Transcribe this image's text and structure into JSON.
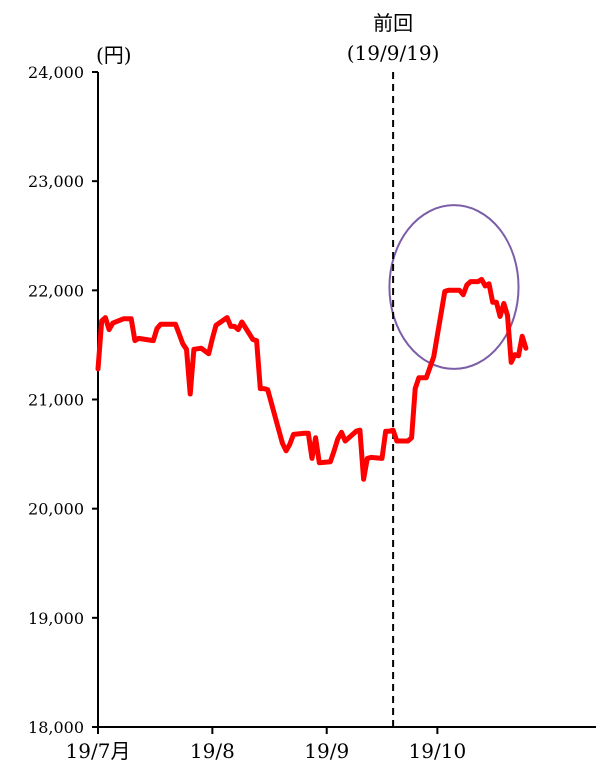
{
  "chart_data": {
    "type": "line",
    "unit_label": "(円)",
    "ylim": [
      18000,
      24000
    ],
    "y_ticks": [
      {
        "value": 18000,
        "label": "18,000"
      },
      {
        "value": 19000,
        "label": "19,000"
      },
      {
        "value": 20000,
        "label": "20,000"
      },
      {
        "value": 21000,
        "label": "21,000"
      },
      {
        "value": 22000,
        "label": "22,000"
      },
      {
        "value": 23000,
        "label": "23,000"
      },
      {
        "value": 24000,
        "label": "24,000"
      }
    ],
    "x_range": [
      "2019-07-01",
      "2019-10-25"
    ],
    "x_ticks": [
      {
        "date": "2019-07-01",
        "label": "19/7月"
      },
      {
        "date": "2019-08-01",
        "label": "19/8"
      },
      {
        "date": "2019-09-01",
        "label": "19/9"
      },
      {
        "date": "2019-10-01",
        "label": "19/10"
      }
    ],
    "reference_line": {
      "date": "2019-09-19",
      "label_line1": "前回",
      "label_line2": "(19/9/19)",
      "style": "dashed"
    },
    "highlight_circle": {
      "color": "#7b5ea7",
      "date_from": "2019-09-18",
      "date_to": "2019-10-23",
      "y_from": 21280,
      "y_to": 22780
    },
    "grid": false,
    "series_color": "#ff0000",
    "series": [
      {
        "values": [
          [
            "2019-07-01",
            21280
          ],
          [
            "2019-07-02",
            21720
          ],
          [
            "2019-07-03",
            21750
          ],
          [
            "2019-07-04",
            21640
          ],
          [
            "2019-07-05",
            21700
          ],
          [
            "2019-07-08",
            21740
          ],
          [
            "2019-07-09",
            21740
          ],
          [
            "2019-07-10",
            21740
          ],
          [
            "2019-07-11",
            21540
          ],
          [
            "2019-07-12",
            21560
          ],
          [
            "2019-07-16",
            21540
          ],
          [
            "2019-07-17",
            21650
          ],
          [
            "2019-07-18",
            21690
          ],
          [
            "2019-07-19",
            21690
          ],
          [
            "2019-07-22",
            21690
          ],
          [
            "2019-07-23",
            21600
          ],
          [
            "2019-07-24",
            21510
          ],
          [
            "2019-07-25",
            21460
          ],
          [
            "2019-07-26",
            21050
          ],
          [
            "2019-07-27",
            21460
          ],
          [
            "2019-07-29",
            21470
          ],
          [
            "2019-07-31",
            21420
          ],
          [
            "2019-08-01",
            21560
          ],
          [
            "2019-08-02",
            21680
          ],
          [
            "2019-08-05",
            21750
          ],
          [
            "2019-08-06",
            21670
          ],
          [
            "2019-08-07",
            21670
          ],
          [
            "2019-08-08",
            21640
          ],
          [
            "2019-08-09",
            21710
          ],
          [
            "2019-08-12",
            21550
          ],
          [
            "2019-08-13",
            21540
          ],
          [
            "2019-08-14",
            21100
          ],
          [
            "2019-08-15",
            21100
          ],
          [
            "2019-08-16",
            21090
          ],
          [
            "2019-08-19",
            20720
          ],
          [
            "2019-08-20",
            20600
          ],
          [
            "2019-08-21",
            20530
          ],
          [
            "2019-08-22",
            20590
          ],
          [
            "2019-08-23",
            20680
          ],
          [
            "2019-08-26",
            20690
          ],
          [
            "2019-08-27",
            20690
          ],
          [
            "2019-08-28",
            20460
          ],
          [
            "2019-08-29",
            20650
          ],
          [
            "2019-08-30",
            20420
          ],
          [
            "2019-09-02",
            20430
          ],
          [
            "2019-09-03",
            20530
          ],
          [
            "2019-09-04",
            20640
          ],
          [
            "2019-09-05",
            20700
          ],
          [
            "2019-09-06",
            20620
          ],
          [
            "2019-09-09",
            20710
          ],
          [
            "2019-09-10",
            20720
          ],
          [
            "2019-09-11",
            20270
          ],
          [
            "2019-09-12",
            20460
          ],
          [
            "2019-09-13",
            20470
          ],
          [
            "2019-09-16",
            20460
          ],
          [
            "2019-09-17",
            20710
          ],
          [
            "2019-09-18",
            20710
          ],
          [
            "2019-09-19",
            20720
          ],
          [
            "2019-09-20",
            20620
          ],
          [
            "2019-09-23",
            20620
          ],
          [
            "2019-09-24",
            20650
          ],
          [
            "2019-09-25",
            21100
          ],
          [
            "2019-09-26",
            21200
          ],
          [
            "2019-09-27",
            21200
          ],
          [
            "2019-09-28",
            21200
          ],
          [
            "2019-09-30",
            21390
          ],
          [
            "2019-10-01",
            21590
          ],
          [
            "2019-10-02",
            21790
          ],
          [
            "2019-10-03",
            21990
          ],
          [
            "2019-10-04",
            22000
          ],
          [
            "2019-10-05",
            22000
          ],
          [
            "2019-10-06",
            22000
          ],
          [
            "2019-10-07",
            22000
          ],
          [
            "2019-10-08",
            21960
          ],
          [
            "2019-10-09",
            22050
          ],
          [
            "2019-10-10",
            22080
          ],
          [
            "2019-10-11",
            22080
          ],
          [
            "2019-10-12",
            22080
          ],
          [
            "2019-10-13",
            22100
          ],
          [
            "2019-10-14",
            22040
          ],
          [
            "2019-10-15",
            22060
          ],
          [
            "2019-10-16",
            21890
          ],
          [
            "2019-10-17",
            21890
          ],
          [
            "2019-10-18",
            21760
          ],
          [
            "2019-10-19",
            21880
          ],
          [
            "2019-10-20",
            21770
          ],
          [
            "2019-10-21",
            21340
          ],
          [
            "2019-10-22",
            21410
          ],
          [
            "2019-10-23",
            21400
          ],
          [
            "2019-10-24",
            21580
          ],
          [
            "2019-10-25",
            21470
          ]
        ]
      }
    ]
  }
}
